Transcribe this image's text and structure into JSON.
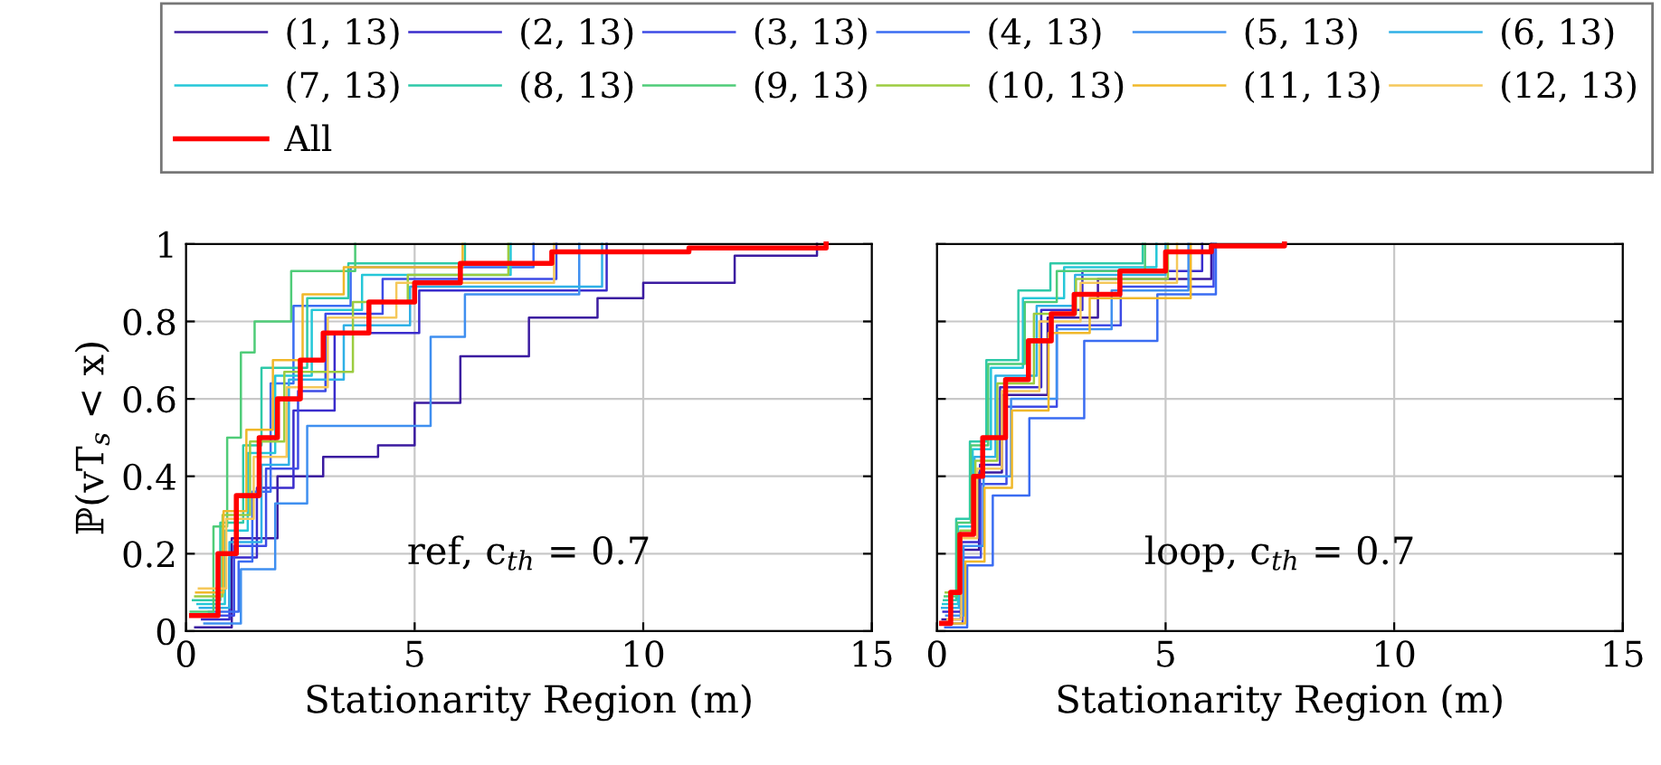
{
  "chart_data": [
    {
      "type": "step",
      "xlabel": "Stationarity Region (m)",
      "ylabel": "ℙ(vT$_{s}$ < x)",
      "annotations": [
        "ref, c$_{th}$ = 0.7"
      ],
      "xlim": [
        0,
        15
      ],
      "ylim": [
        0,
        1
      ],
      "xticks": [
        0,
        5,
        10,
        15
      ],
      "yticks": [
        0,
        0.2,
        0.4,
        0.6,
        0.8,
        1
      ],
      "grid": true,
      "legend": "top",
      "marker": "none",
      "line_style": "solid",
      "series": [
        {
          "name": "(1, 13)",
          "color": "#3b1ba0",
          "x": [
            0.2,
            1.0,
            2.0,
            3.0,
            4.2,
            5.0,
            6.0,
            7.5,
            9.0,
            10.0,
            12.0,
            13.8
          ],
          "values": [
            0.01,
            0.24,
            0.4,
            0.45,
            0.48,
            0.59,
            0.71,
            0.81,
            0.86,
            0.9,
            0.97,
            1
          ]
        },
        {
          "name": "(2, 13)",
          "color": "#3a2ccc",
          "x": [
            0.35,
            0.95,
            1.55,
            2.35,
            3.25,
            5.1,
            9.2
          ],
          "values": [
            0.03,
            0.19,
            0.37,
            0.57,
            0.77,
            0.88,
            1
          ]
        },
        {
          "name": "(3, 13)",
          "color": "#3d4be6",
          "x": [
            0.45,
            1.05,
            1.75,
            2.45,
            3.05,
            4.3,
            8.1
          ],
          "values": [
            0.04,
            0.22,
            0.42,
            0.62,
            0.82,
            0.91,
            1
          ]
        },
        {
          "name": "(4, 13)",
          "color": "#3a6cf2",
          "x": [
            0.5,
            1.15,
            1.45,
            1.85,
            2.35,
            3.6,
            7.6
          ],
          "values": [
            0.05,
            0.18,
            0.36,
            0.64,
            0.84,
            0.94,
            1
          ]
        },
        {
          "name": "(5, 13)",
          "color": "#3f8ff0",
          "x": [
            0.4,
            1.2,
            1.95,
            2.65,
            5.35,
            6.1,
            8.6
          ],
          "values": [
            0.02,
            0.16,
            0.33,
            0.53,
            0.76,
            0.87,
            1
          ]
        },
        {
          "name": "(6, 13)",
          "color": "#2fb0e6",
          "x": [
            0.3,
            0.95,
            1.65,
            2.25,
            3.45,
            4.9,
            9.1
          ],
          "values": [
            0.06,
            0.23,
            0.43,
            0.65,
            0.79,
            0.89,
            1
          ]
        },
        {
          "name": "(7, 13)",
          "color": "#25c7d8",
          "x": [
            0.25,
            0.85,
            1.35,
            1.95,
            2.75,
            3.85,
            7.1
          ],
          "values": [
            0.07,
            0.26,
            0.46,
            0.66,
            0.83,
            0.92,
            1
          ]
        },
        {
          "name": "(8, 13)",
          "color": "#2ec9a8",
          "x": [
            0.15,
            0.75,
            1.25,
            1.65,
            2.65,
            3.55,
            6.1
          ],
          "values": [
            0.08,
            0.28,
            0.48,
            0.68,
            0.86,
            0.95,
            1
          ]
        },
        {
          "name": "(9, 13)",
          "color": "#4fcc78",
          "x": [
            0.1,
            0.6,
            0.9,
            1.2,
            1.5,
            2.3,
            3.7
          ],
          "values": [
            0.05,
            0.27,
            0.5,
            0.72,
            0.8,
            0.93,
            1
          ]
        },
        {
          "name": "(10, 13)",
          "color": "#9ccc40",
          "x": [
            0.2,
            0.8,
            1.4,
            2.15,
            3.65,
            4.85,
            7.05
          ],
          "values": [
            0.09,
            0.3,
            0.49,
            0.67,
            0.85,
            0.92,
            1
          ]
        },
        {
          "name": "(11, 13)",
          "color": "#f0b82a",
          "x": [
            0.22,
            0.82,
            1.32,
            1.9,
            2.55,
            3.45,
            6.05
          ],
          "values": [
            0.1,
            0.31,
            0.52,
            0.7,
            0.87,
            0.94,
            1
          ]
        },
        {
          "name": "(12, 13)",
          "color": "#f5c85a",
          "x": [
            0.28,
            0.88,
            1.48,
            2.2,
            3.1,
            4.6,
            8.05
          ],
          "values": [
            0.11,
            0.29,
            0.45,
            0.63,
            0.81,
            0.9,
            1
          ]
        },
        {
          "name": "All",
          "color": "#ff0000",
          "x": [
            0.12,
            0.7,
            1.1,
            1.6,
            2.0,
            2.5,
            3.0,
            4.0,
            5.0,
            6.0,
            8.0,
            11.0,
            14.0
          ],
          "values": [
            0.04,
            0.2,
            0.35,
            0.5,
            0.6,
            0.7,
            0.77,
            0.85,
            0.9,
            0.95,
            0.98,
            0.99,
            1
          ]
        }
      ]
    },
    {
      "type": "step",
      "xlabel": "Stationarity Region (m)",
      "annotations": [
        "loop, c$_{th}$ = 0.7"
      ],
      "xlim": [
        0,
        15
      ],
      "ylim": [
        0,
        1
      ],
      "xticks": [
        0,
        5,
        10,
        15
      ],
      "yticks": [
        0,
        0.2,
        0.4,
        0.6,
        0.8,
        1
      ],
      "tick_labels": "x",
      "grid": true,
      "marker": "none",
      "line_style": "solid",
      "series": [
        {
          "color": "#3b1ba0",
          "x": [
            0.12,
            0.52,
            0.92,
            1.42,
            2.42,
            3.52,
            6.0
          ],
          "values": [
            0.03,
            0.21,
            0.41,
            0.61,
            0.81,
            0.91,
            1
          ]
        },
        {
          "color": "#3a2ccc",
          "x": [
            0.14,
            0.54,
            0.94,
            1.38,
            2.28,
            3.18,
            5.8
          ],
          "values": [
            0.05,
            0.23,
            0.43,
            0.63,
            0.83,
            0.93,
            1
          ]
        },
        {
          "color": "#3d4be6",
          "x": [
            0.16,
            0.56,
            0.96,
            1.52,
            2.62,
            4.02,
            6.05
          ],
          "values": [
            0.02,
            0.19,
            0.38,
            0.58,
            0.79,
            0.89,
            1
          ]
        },
        {
          "color": "#3a6cf2",
          "x": [
            0.18,
            0.66,
            1.22,
            2.02,
            3.22,
            4.82,
            6.1
          ],
          "values": [
            0.01,
            0.17,
            0.35,
            0.55,
            0.75,
            0.87,
            1
          ]
        },
        {
          "color": "#3f8ff0",
          "x": [
            0.2,
            0.58,
            1.02,
            1.62,
            2.62,
            3.82,
            5.5
          ],
          "values": [
            0.04,
            0.22,
            0.4,
            0.6,
            0.78,
            0.88,
            1
          ]
        },
        {
          "color": "#2fb0e6",
          "x": [
            0.11,
            0.48,
            0.82,
            1.28,
            2.18,
            3.02,
            5.0
          ],
          "values": [
            0.06,
            0.25,
            0.45,
            0.66,
            0.84,
            0.92,
            1
          ]
        },
        {
          "color": "#25c7d8",
          "x": [
            0.13,
            0.46,
            0.78,
            1.18,
            1.88,
            2.78,
            4.8
          ],
          "values": [
            0.07,
            0.27,
            0.47,
            0.68,
            0.86,
            0.94,
            1
          ]
        },
        {
          "color": "#2ec9a8",
          "x": [
            0.15,
            0.42,
            0.72,
            1.08,
            1.78,
            2.48,
            4.5
          ],
          "values": [
            0.08,
            0.29,
            0.49,
            0.7,
            0.88,
            0.95,
            1
          ]
        },
        {
          "color": "#4fcc78",
          "x": [
            0.17,
            0.44,
            0.74,
            1.12,
            1.92,
            2.62,
            4.55
          ],
          "values": [
            0.09,
            0.28,
            0.48,
            0.69,
            0.85,
            0.93,
            1
          ]
        },
        {
          "color": "#9ccc40",
          "x": [
            0.19,
            0.51,
            0.84,
            1.32,
            2.12,
            3.04,
            5.05
          ],
          "values": [
            0.1,
            0.26,
            0.44,
            0.64,
            0.82,
            0.91,
            1
          ]
        },
        {
          "color": "#f0b82a",
          "x": [
            0.21,
            0.62,
            1.04,
            1.64,
            2.44,
            3.34,
            5.55
          ],
          "values": [
            0.02,
            0.18,
            0.37,
            0.57,
            0.77,
            0.86,
            1
          ]
        },
        {
          "color": "#f5c85a",
          "x": [
            0.23,
            0.53,
            0.88,
            1.42,
            2.24,
            3.14,
            5.25
          ],
          "values": [
            0.03,
            0.24,
            0.42,
            0.62,
            0.8,
            0.9,
            1
          ]
        },
        {
          "color": "#ff0000",
          "x": [
            0.1,
            0.3,
            0.5,
            0.8,
            1.0,
            1.5,
            2.0,
            2.5,
            3.0,
            4.0,
            5.0,
            6.0,
            7.6
          ],
          "values": [
            0.02,
            0.1,
            0.25,
            0.4,
            0.5,
            0.65,
            0.75,
            0.82,
            0.87,
            0.93,
            0.98,
            0.995,
            1
          ]
        }
      ]
    }
  ]
}
